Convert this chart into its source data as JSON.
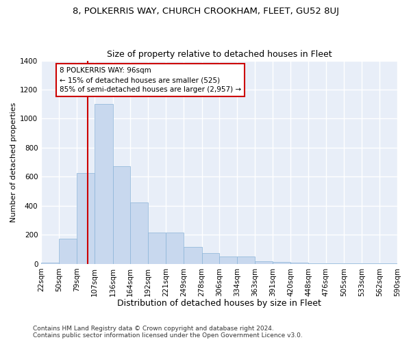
{
  "title1": "8, POLKERRIS WAY, CHURCH CROOKHAM, FLEET, GU52 8UJ",
  "title2": "Size of property relative to detached houses in Fleet",
  "xlabel": "Distribution of detached houses by size in Fleet",
  "ylabel": "Number of detached properties",
  "bar_color": "#c8d8ee",
  "bar_edge_color": "#8ab4d8",
  "background_color": "#e8eef8",
  "grid_color": "#ffffff",
  "vline_x": 96,
  "vline_color": "#cc0000",
  "annotation_text": "8 POLKERRIS WAY: 96sqm\n← 15% of detached houses are smaller (525)\n85% of semi-detached houses are larger (2,957) →",
  "annotation_box_color": "#ffffff",
  "annotation_box_edge": "#cc0000",
  "bin_edges": [
    22,
    50,
    79,
    107,
    136,
    164,
    192,
    221,
    249,
    278,
    306,
    334,
    363,
    391,
    420,
    448,
    476,
    505,
    533,
    562,
    590
  ],
  "bar_heights": [
    10,
    175,
    625,
    1100,
    675,
    425,
    215,
    215,
    115,
    75,
    50,
    50,
    20,
    12,
    8,
    5,
    5,
    5,
    3,
    2
  ],
  "ylim": [
    0,
    1400
  ],
  "yticks": [
    0,
    200,
    400,
    600,
    800,
    1000,
    1200,
    1400
  ],
  "footer_text": "Contains HM Land Registry data © Crown copyright and database right 2024.\nContains public sector information licensed under the Open Government Licence v3.0.",
  "title1_fontsize": 9.5,
  "title2_fontsize": 9,
  "xlabel_fontsize": 9,
  "ylabel_fontsize": 8,
  "tick_fontsize": 7.5,
  "footer_fontsize": 6.5,
  "annot_fontsize": 7.5
}
